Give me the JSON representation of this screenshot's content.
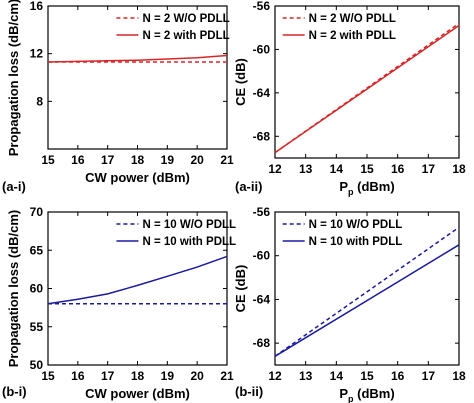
{
  "chart_data": [
    {
      "panel": "(a-i)",
      "type": "line",
      "xlabel": "CW power (dBm)",
      "ylabel": "Propagation loss (dB/cm)",
      "xlim": [
        15,
        21
      ],
      "ylim": [
        4,
        16
      ],
      "xticks": [
        15,
        16,
        17,
        18,
        19,
        20,
        21
      ],
      "yticks": [
        8,
        12,
        16
      ],
      "legend_position": "top-right",
      "series": [
        {
          "name": "N = 2 W/O PDLL",
          "color": "#d62728",
          "style": "dashed",
          "x": [
            15,
            16,
            17,
            18,
            19,
            20,
            21
          ],
          "y": [
            11.3,
            11.3,
            11.3,
            11.3,
            11.3,
            11.3,
            11.3
          ]
        },
        {
          "name": "N = 2 with PDLL",
          "color": "#d62728",
          "style": "solid",
          "x": [
            15,
            16,
            17,
            18,
            19,
            20,
            21
          ],
          "y": [
            11.3,
            11.35,
            11.4,
            11.45,
            11.55,
            11.65,
            11.85
          ]
        }
      ]
    },
    {
      "panel": "(a-ii)",
      "type": "line",
      "xlabel": "P_p (dBm)",
      "ylabel": "CE (dB)",
      "xlim": [
        12,
        18
      ],
      "ylim": [
        -70,
        -56
      ],
      "xticks": [
        12,
        13,
        14,
        15,
        16,
        17,
        18
      ],
      "yticks": [
        -56,
        -60,
        -64,
        -68
      ],
      "legend_position": "top-left",
      "series": [
        {
          "name": "N = 2 W/O PDLL",
          "color": "#d62728",
          "style": "dashed",
          "x": [
            12,
            18
          ],
          "y": [
            -69.5,
            -57.6
          ]
        },
        {
          "name": "N = 2 with PDLL",
          "color": "#d62728",
          "style": "solid",
          "x": [
            12,
            18
          ],
          "y": [
            -69.5,
            -57.8
          ]
        }
      ]
    },
    {
      "panel": "(b-i)",
      "type": "line",
      "xlabel": "CW power (dBm)",
      "ylabel": "Propagation loss (dB/cm)",
      "xlim": [
        15,
        21
      ],
      "ylim": [
        50,
        70
      ],
      "xticks": [
        15,
        16,
        17,
        18,
        19,
        20,
        21
      ],
      "yticks": [
        50,
        55,
        60,
        65,
        70
      ],
      "legend_position": "top-right",
      "series": [
        {
          "name": "N = 10 W/O PDLL",
          "color": "#1a1aa0",
          "style": "dashed",
          "x": [
            15,
            16,
            17,
            18,
            19,
            20,
            21
          ],
          "y": [
            58.0,
            58.0,
            58.0,
            58.0,
            58.0,
            58.0,
            58.0
          ]
        },
        {
          "name": "N = 10 with PDLL",
          "color": "#1a1aa0",
          "style": "solid",
          "x": [
            15,
            16,
            17,
            18,
            19,
            20,
            21
          ],
          "y": [
            58.0,
            58.6,
            59.3,
            60.4,
            61.6,
            62.8,
            64.2
          ]
        }
      ]
    },
    {
      "panel": "(b-ii)",
      "type": "line",
      "xlabel": "P_p (dBm)",
      "ylabel": "CE (dB)",
      "xlim": [
        12,
        18
      ],
      "ylim": [
        -70,
        -56
      ],
      "xticks": [
        12,
        13,
        14,
        15,
        16,
        17,
        18
      ],
      "yticks": [
        -56,
        -60,
        -64,
        -68
      ],
      "legend_position": "top-left",
      "series": [
        {
          "name": "N = 10 W/O PDLL",
          "color": "#1a1aa0",
          "style": "dashed",
          "x": [
            12,
            18
          ],
          "y": [
            -69.2,
            -57.4
          ]
        },
        {
          "name": "N = 10 with PDLL",
          "color": "#1a1aa0",
          "style": "solid",
          "x": [
            12,
            18
          ],
          "y": [
            -69.2,
            -59.0
          ]
        }
      ]
    }
  ]
}
